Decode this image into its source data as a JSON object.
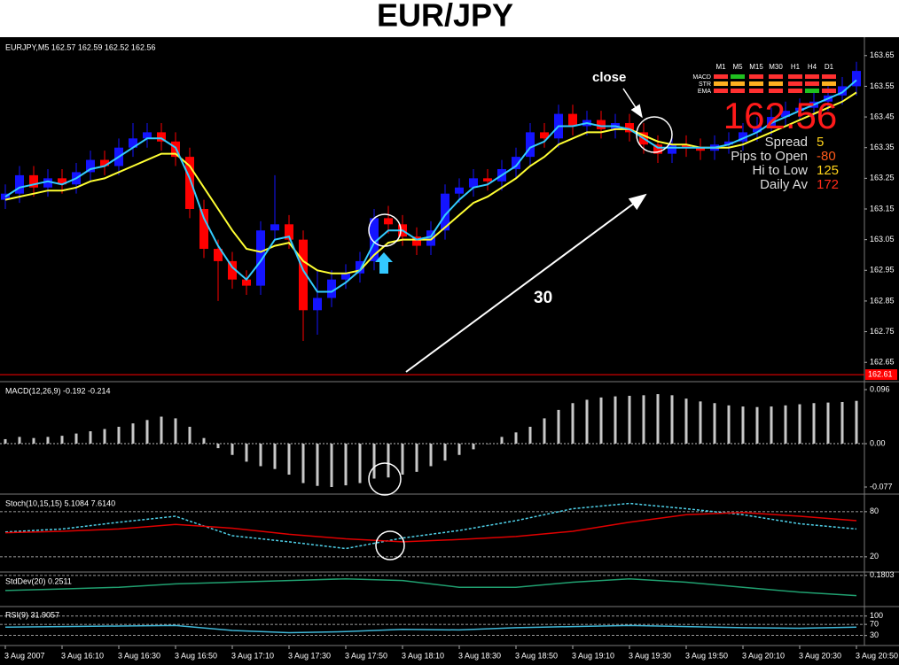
{
  "chart_data": [
    {
      "type": "candlestick",
      "title": "EUR/JPY",
      "subtitle": "EURJPY,M5  162.57 162.59 162.52 162.56",
      "xlim": [
        0,
        60
      ],
      "xticks": [
        {
          "value": 0,
          "label": "3 Aug 2007"
        },
        {
          "value": 4,
          "label": "3 Aug 16:10"
        },
        {
          "value": 8,
          "label": "3 Aug 16:30"
        },
        {
          "value": 12,
          "label": "3 Aug 16:50"
        },
        {
          "value": 16,
          "label": "3 Aug 17:10"
        },
        {
          "value": 20,
          "label": "3 Aug 17:30"
        },
        {
          "value": 24,
          "label": "3 Aug 17:50"
        },
        {
          "value": 28,
          "label": "3 Aug 18:10"
        },
        {
          "value": 32,
          "label": "3 Aug 18:30"
        },
        {
          "value": 36,
          "label": "3 Aug 18:50"
        },
        {
          "value": 40,
          "label": "3 Aug 19:10"
        },
        {
          "value": 44,
          "label": "3 Aug 19:30"
        },
        {
          "value": 48,
          "label": "3 Aug 19:50"
        },
        {
          "value": 52,
          "label": "3 Aug 20:10"
        },
        {
          "value": 56,
          "label": "3 Aug 20:30"
        },
        {
          "value": 60,
          "label": "3 Aug 20:50"
        }
      ],
      "ylim": [
        162.59,
        163.71
      ],
      "yticks": [
        163.65,
        163.55,
        163.45,
        163.35,
        163.25,
        163.15,
        163.05,
        162.95,
        162.85,
        162.75,
        162.65
      ],
      "up_color": "#1414ff",
      "down_color": "#ff0000",
      "open": [
        163.18,
        163.2,
        163.26,
        163.22,
        163.25,
        163.23,
        163.27,
        163.31,
        163.29,
        163.35,
        163.38,
        163.4,
        163.37,
        163.32,
        163.15,
        163.02,
        162.98,
        162.92,
        162.9,
        163.08,
        163.1,
        163.05,
        162.82,
        162.86,
        162.92,
        162.94,
        162.98,
        163.12,
        163.1,
        163.06,
        163.03,
        163.08,
        163.2,
        163.22,
        163.25,
        163.24,
        163.28,
        163.32,
        163.4,
        163.38,
        163.46,
        163.42,
        163.44,
        163.41,
        163.43,
        163.4,
        163.36,
        163.33,
        163.36,
        163.35,
        163.34,
        163.36,
        163.37,
        163.4,
        163.42,
        163.45,
        163.47,
        163.48,
        163.5,
        163.52,
        163.55
      ],
      "high": [
        163.23,
        163.29,
        163.29,
        163.28,
        163.28,
        163.3,
        163.34,
        163.34,
        163.38,
        163.43,
        163.43,
        163.43,
        163.4,
        163.35,
        163.18,
        163.05,
        163.01,
        162.95,
        163.11,
        163.26,
        163.13,
        163.08,
        162.95,
        162.95,
        162.97,
        163.01,
        163.15,
        163.16,
        163.13,
        163.09,
        163.11,
        163.23,
        163.25,
        163.28,
        163.28,
        163.31,
        163.35,
        163.43,
        163.43,
        163.49,
        163.49,
        163.47,
        163.47,
        163.46,
        163.46,
        163.43,
        163.39,
        163.39,
        163.39,
        163.38,
        163.39,
        163.4,
        163.43,
        163.45,
        163.48,
        163.5,
        163.51,
        163.53,
        163.55,
        163.58,
        163.63
      ],
      "low": [
        163.15,
        163.17,
        163.19,
        163.19,
        163.2,
        163.2,
        163.24,
        163.26,
        163.26,
        163.32,
        163.35,
        163.34,
        163.29,
        163.12,
        162.99,
        162.85,
        162.89,
        162.87,
        162.87,
        163.05,
        163.02,
        162.72,
        162.74,
        162.83,
        162.89,
        162.91,
        162.95,
        163.07,
        163.03,
        163.0,
        163.0,
        163.05,
        163.17,
        163.19,
        163.21,
        163.21,
        163.25,
        163.29,
        163.35,
        163.35,
        163.39,
        163.39,
        163.38,
        163.38,
        163.37,
        163.33,
        163.3,
        163.3,
        163.32,
        163.31,
        163.31,
        163.33,
        163.34,
        163.37,
        163.39,
        163.42,
        163.44,
        163.45,
        163.47,
        163.49,
        163.52
      ],
      "close": [
        163.2,
        163.26,
        163.22,
        163.25,
        163.23,
        163.27,
        163.31,
        163.29,
        163.35,
        163.38,
        163.4,
        163.37,
        163.32,
        163.15,
        163.02,
        162.98,
        162.92,
        162.9,
        163.08,
        163.1,
        163.05,
        162.82,
        162.86,
        162.92,
        162.94,
        162.98,
        163.12,
        163.1,
        163.06,
        163.03,
        163.08,
        163.2,
        163.22,
        163.25,
        163.24,
        163.28,
        163.32,
        163.4,
        163.38,
        163.46,
        163.42,
        163.44,
        163.41,
        163.43,
        163.4,
        163.36,
        163.33,
        163.36,
        163.35,
        163.34,
        163.36,
        163.37,
        163.4,
        163.42,
        163.45,
        163.47,
        163.48,
        163.5,
        163.52,
        163.55,
        163.6
      ],
      "overlays": [
        {
          "color": "#ffff33",
          "values": [
            163.18,
            163.19,
            163.2,
            163.21,
            163.21,
            163.22,
            163.24,
            163.25,
            163.27,
            163.29,
            163.31,
            163.33,
            163.33,
            163.29,
            163.22,
            163.15,
            163.08,
            163.02,
            163.01,
            163.03,
            163.04,
            162.98,
            162.95,
            162.94,
            162.94,
            162.95,
            163.0,
            163.04,
            163.05,
            163.05,
            163.05,
            163.09,
            163.13,
            163.17,
            163.19,
            163.22,
            163.25,
            163.29,
            163.32,
            163.36,
            163.38,
            163.4,
            163.4,
            163.41,
            163.41,
            163.39,
            163.37,
            163.36,
            163.36,
            163.35,
            163.35,
            163.35,
            163.36,
            163.38,
            163.4,
            163.42,
            163.44,
            163.46,
            163.48,
            163.5,
            163.53
          ]
        },
        {
          "color": "#33ccff",
          "values": [
            163.19,
            163.22,
            163.23,
            163.24,
            163.23,
            163.25,
            163.28,
            163.29,
            163.32,
            163.35,
            163.38,
            163.38,
            163.35,
            163.25,
            163.12,
            163.03,
            162.96,
            162.92,
            162.98,
            163.05,
            163.06,
            162.95,
            162.88,
            162.88,
            162.91,
            162.95,
            163.04,
            163.08,
            163.08,
            163.05,
            163.06,
            163.13,
            163.18,
            163.22,
            163.23,
            163.26,
            163.29,
            163.35,
            163.37,
            163.42,
            163.42,
            163.43,
            163.42,
            163.42,
            163.41,
            163.38,
            163.35,
            163.35,
            163.35,
            163.35,
            163.35,
            163.36,
            163.38,
            163.4,
            163.43,
            163.45,
            163.47,
            163.49,
            163.51,
            163.53,
            163.57
          ]
        }
      ],
      "price_label": 162.61,
      "annotations": [
        "close",
        "30"
      ],
      "info_panel": {
        "timeframes": [
          "M1",
          "M5",
          "M15",
          "M30",
          "H1",
          "H4",
          "D1"
        ],
        "rows": [
          "MACD",
          "STR",
          "EMA"
        ],
        "price": 162.56,
        "stats": [
          {
            "label": "Spread",
            "value": 5,
            "color": "#ffd21a"
          },
          {
            "label": "Pips to Open",
            "value": -80,
            "color": "#ff5a1a"
          },
          {
            "label": "Hi to Low",
            "value": 125,
            "color": "#ffd21a"
          },
          {
            "label": "Daily Av",
            "value": 172,
            "color": "#ff2a1a"
          }
        ]
      }
    },
    {
      "type": "bar",
      "title": "MACD(12,26,9) -0.192 -0.214",
      "color": "#c8c8c8",
      "values": [
        0.008,
        0.012,
        0.01,
        0.012,
        0.014,
        0.018,
        0.022,
        0.026,
        0.03,
        0.036,
        0.042,
        0.048,
        0.045,
        0.03,
        0.01,
        -0.008,
        -0.02,
        -0.032,
        -0.04,
        -0.045,
        -0.055,
        -0.07,
        -0.075,
        -0.077,
        -0.074,
        -0.07,
        -0.062,
        -0.06,
        -0.055,
        -0.05,
        -0.04,
        -0.03,
        -0.02,
        -0.01,
        0.0,
        0.012,
        0.02,
        0.03,
        0.045,
        0.06,
        0.072,
        0.078,
        0.082,
        0.084,
        0.085,
        0.086,
        0.088,
        0.086,
        0.08,
        0.075,
        0.072,
        0.068,
        0.066,
        0.065,
        0.066,
        0.068,
        0.07,
        0.072,
        0.073,
        0.074,
        0.076
      ],
      "ylim": [
        -0.088,
        0.107
      ],
      "yticks": [
        0.096,
        {
          "value": 0,
          "label": "0.00"
        },
        -0.077
      ],
      "grid": false
    },
    {
      "type": "line",
      "title": "Stoch(10,15,15) 5.1084 7.6140",
      "x": [
        0,
        4,
        8,
        12,
        16,
        20,
        24,
        28,
        32,
        36,
        40,
        44,
        48,
        52,
        56,
        60
      ],
      "series": [
        {
          "color": "#4fd0e8",
          "dashed": true,
          "values": [
            53,
            57,
            66,
            74,
            48,
            40,
            31,
            45,
            55,
            68,
            84,
            91,
            84,
            76,
            64,
            57
          ]
        },
        {
          "color": "#e00000",
          "dashed": false,
          "values": [
            52,
            54,
            57,
            63,
            58,
            50,
            44,
            40,
            43,
            47,
            54,
            66,
            76,
            79,
            74,
            68
          ]
        }
      ],
      "ylim": [
        1,
        101
      ],
      "yticks": [
        20,
        80
      ],
      "grid": true
    },
    {
      "type": "line",
      "title": "StdDev(20) 0.2511",
      "x": [
        0,
        4,
        8,
        12,
        16,
        20,
        24,
        28,
        32,
        36,
        40,
        44,
        48,
        52,
        56,
        60
      ],
      "series": [
        {
          "color": "#20a070",
          "dashed": false,
          "values": [
            0.09,
            0.1,
            0.11,
            0.13,
            0.14,
            0.15,
            0.16,
            0.15,
            0.11,
            0.11,
            0.14,
            0.16,
            0.14,
            0.11,
            0.08,
            0.06
          ]
        }
      ],
      "ylim": [
        0,
        0.19
      ],
      "yticks": [
        0.1803
      ],
      "grid": true
    },
    {
      "type": "line",
      "title": "RSI(9) 31.9057",
      "x": [
        0,
        4,
        8,
        12,
        16,
        20,
        24,
        28,
        32,
        36,
        40,
        44,
        48,
        52,
        56,
        60
      ],
      "series": [
        {
          "color": "#3fb6d6",
          "dashed": false,
          "values": [
            60,
            62,
            64,
            66,
            48,
            40,
            44,
            52,
            50,
            58,
            62,
            66,
            62,
            58,
            56,
            60
          ]
        }
      ],
      "ylim": [
        -3,
        131
      ],
      "yticks": [
        100,
        70,
        30
      ],
      "grid": true
    }
  ]
}
